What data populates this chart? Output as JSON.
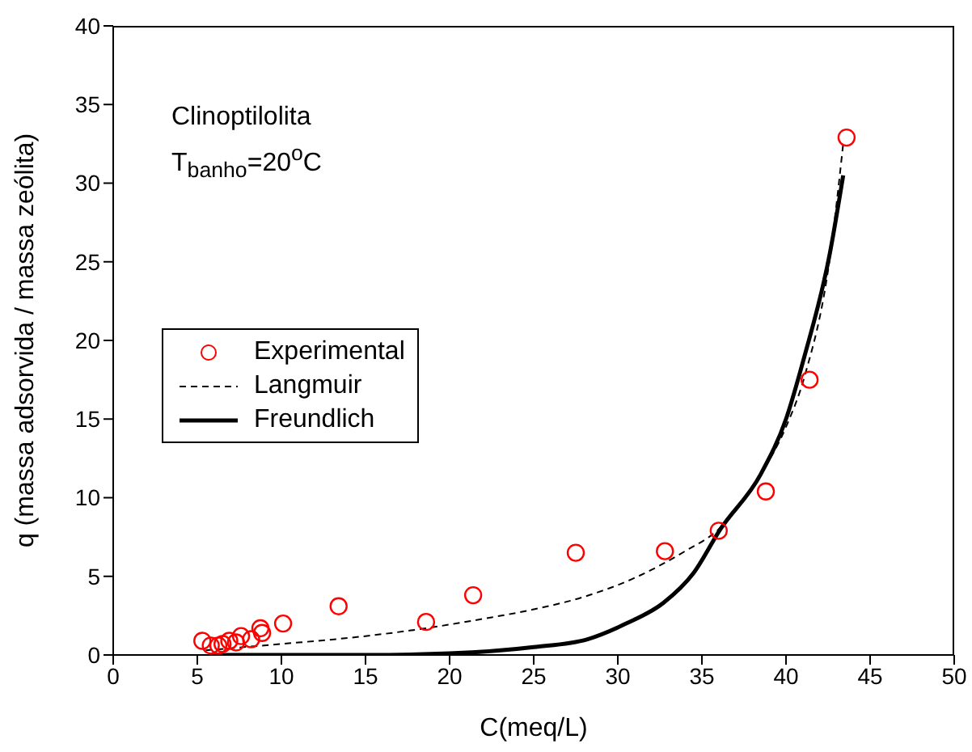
{
  "chart_data": {
    "type": "scatter",
    "xlabel": "C(meq/L)",
    "ylabel": "q (massa adsorvida / massa zeólita)",
    "xlim": [
      0,
      50
    ],
    "xticks": [
      0,
      5,
      10,
      15,
      20,
      25,
      30,
      35,
      40,
      45,
      50
    ],
    "ylim": [
      0,
      40
    ],
    "yticks": [
      0,
      5,
      10,
      15,
      20,
      25,
      30,
      35,
      40
    ],
    "grid": false,
    "legend": "left",
    "annotations": [
      "Clinoptilolita",
      "T$_{banho}$=20$^{o}$C"
    ],
    "series": [
      {
        "name": "Experimental",
        "color": "#ff0000",
        "marker": "circle",
        "x": [
          5.3,
          5.8,
          6.25,
          6.5,
          6.9,
          7.3,
          7.6,
          8.2,
          8.75,
          8.85,
          10.1,
          13.4,
          18.6,
          21.4,
          27.5,
          32.8,
          36.0,
          38.8,
          41.4,
          43.6
        ],
        "values": [
          0.9,
          0.6,
          0.6,
          0.7,
          0.9,
          0.8,
          1.2,
          1.0,
          1.7,
          1.4,
          2.0,
          3.1,
          2.1,
          3.8,
          6.5,
          6.6,
          7.9,
          10.4,
          17.5,
          32.9
        ]
      },
      {
        "name": "Langmuir",
        "type": "line",
        "color": "#000000",
        "line_style": "dashed",
        "marker": "none",
        "x": [
          5.5,
          10,
          15,
          18.6,
          22,
          25,
          28,
          31,
          34,
          36,
          38.5,
          40,
          41.1,
          42.6,
          43.4
        ],
        "values": [
          0.3,
          0.7,
          1.2,
          1.7,
          2.3,
          2.9,
          3.7,
          4.9,
          6.6,
          8.0,
          11.5,
          14.5,
          17.7,
          25.2,
          32.5
        ]
      },
      {
        "name": "Freundlich",
        "type": "line",
        "color": "#000000",
        "line_style": "solid",
        "marker": "none",
        "x": [
          6,
          10,
          15,
          20,
          25,
          28.2,
          30.5,
          32.7,
          34.5,
          36.1,
          38.5,
          40,
          41.1,
          42.6,
          43.4
        ],
        "values": [
          0,
          0,
          0,
          0.1,
          0.5,
          1.0,
          2.0,
          3.3,
          5.2,
          8.0,
          11.5,
          15.0,
          19.0,
          25.5,
          30.5
        ]
      }
    ]
  }
}
